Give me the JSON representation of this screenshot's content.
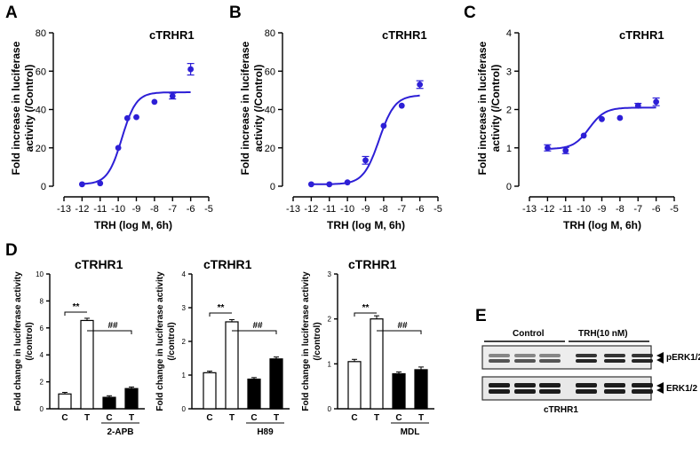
{
  "panel_labels": [
    "A",
    "B",
    "C",
    "D",
    "E"
  ],
  "colors": {
    "curve": "#2d1fd6",
    "bar_open": "#ffffff",
    "bar_filled": "#000000"
  },
  "chart_data": [
    {
      "type": "scatter",
      "panel": "A",
      "title": "cTRHR1",
      "xlabel": "TRH (log M, 6h)",
      "ylabel": "Fold increase in luciferase activity (/Control)",
      "xlim": [
        -13,
        -5
      ],
      "ylim": [
        0,
        80
      ],
      "xticks": [
        "-13",
        "-12",
        "-11",
        "-10",
        "-9",
        "-8",
        "-7",
        "-6",
        "-5"
      ],
      "yticks": [
        "0",
        "20",
        "40",
        "60",
        "80"
      ],
      "x": [
        -12,
        -11,
        -10,
        -9.5,
        -9,
        -8,
        -7,
        -6
      ],
      "y": [
        1,
        1.5,
        20,
        35.5,
        36,
        44,
        47,
        61
      ],
      "error": [
        0,
        0,
        0,
        0,
        0,
        0,
        1.5,
        3
      ],
      "fit": {
        "bottom": 1,
        "top": 49,
        "logEC50": -9.8,
        "hill": 1.1
      }
    },
    {
      "type": "scatter",
      "panel": "B",
      "title": "cTRHR1",
      "xlabel": "TRH (log M, 6h)",
      "ylabel": "Fold increase in luciferase activity (/Control)",
      "xlim": [
        -13,
        -5
      ],
      "ylim": [
        0,
        80
      ],
      "xticks": [
        "-13",
        "-12",
        "-11",
        "-10",
        "-9",
        "-8",
        "-7",
        "-6",
        "-5"
      ],
      "yticks": [
        "0",
        "20",
        "40",
        "60",
        "80"
      ],
      "x": [
        -12,
        -11,
        -10,
        -9,
        -8,
        -7,
        -6
      ],
      "y": [
        1,
        1,
        2,
        13.5,
        31.5,
        42,
        53
      ],
      "error": [
        0,
        0,
        0,
        2,
        0,
        0,
        2
      ],
      "fit": {
        "bottom": 1,
        "top": 47.5,
        "logEC50": -8.25,
        "hill": 1.0
      }
    },
    {
      "type": "scatter",
      "panel": "C",
      "title": "cTRHR1",
      "xlabel": "TRH (log M, 6h)",
      "ylabel": "Fold increase in luciferase activity (/Control)",
      "xlim": [
        -13,
        -5
      ],
      "ylim": [
        0,
        4
      ],
      "xticks": [
        "-13",
        "-12",
        "-11",
        "-10",
        "-9",
        "-8",
        "-7",
        "-6",
        "-5"
      ],
      "yticks": [
        "0",
        "1",
        "2",
        "3",
        "4"
      ],
      "x": [
        -12,
        -11,
        -10,
        -9,
        -8,
        -7,
        -6
      ],
      "y": [
        1.0,
        0.93,
        1.32,
        1.75,
        1.78,
        2.1,
        2.2
      ],
      "error": [
        0.08,
        0.08,
        0,
        0,
        0,
        0.06,
        0.1
      ],
      "fit": {
        "bottom": 0.97,
        "top": 2.05,
        "logEC50": -9.7,
        "hill": 1.0
      }
    },
    {
      "type": "bar",
      "panel": "D",
      "title": "cTRHR1",
      "ylabel": "Fold change in luciferase activity (/control)",
      "ylim": [
        0,
        10
      ],
      "yticks": [
        "0",
        "2",
        "4",
        "6",
        "8",
        "10"
      ],
      "categories": [
        "C",
        "T",
        "C",
        "T"
      ],
      "group_label": "2-APB",
      "values": [
        1.1,
        6.55,
        0.85,
        1.5
      ],
      "error": [
        0.05,
        0.1,
        0.05,
        0.05
      ],
      "fill": [
        "open",
        "open",
        "filled",
        "filled"
      ],
      "significance": [
        "**",
        "##"
      ]
    },
    {
      "type": "bar",
      "panel": "D",
      "title": "cTRHR1",
      "ylabel": "Fold change in luciferase activity (/control)",
      "ylim": [
        0,
        4
      ],
      "yticks": [
        "0",
        "1",
        "2",
        "3",
        "4"
      ],
      "categories": [
        "C",
        "T",
        "C",
        "T"
      ],
      "group_label": "H89",
      "values": [
        1.07,
        2.58,
        0.88,
        1.48
      ],
      "error": [
        0.02,
        0.04,
        0.02,
        0.03
      ],
      "fill": [
        "open",
        "open",
        "filled",
        "filled"
      ],
      "significance": [
        "**",
        "##"
      ]
    },
    {
      "type": "bar",
      "panel": "D",
      "title": "cTRHR1",
      "ylabel": "Fold change in luciferase activity (/control)",
      "ylim": [
        0,
        3
      ],
      "yticks": [
        "0",
        "1",
        "2",
        "3"
      ],
      "categories": [
        "C",
        "T",
        "C",
        "T"
      ],
      "group_label": "MDL",
      "values": [
        1.05,
        2.0,
        0.78,
        0.87
      ],
      "error": [
        0.03,
        0.05,
        0.02,
        0.04
      ],
      "fill": [
        "open",
        "open",
        "filled",
        "filled"
      ],
      "significance": [
        "**",
        "##"
      ]
    }
  ],
  "western": {
    "panel": "E",
    "groups": [
      "Control",
      "TRH(10 nM)"
    ],
    "bands": [
      "pERK1/2",
      "ERK1/2"
    ],
    "caption": "cTRHR1"
  }
}
